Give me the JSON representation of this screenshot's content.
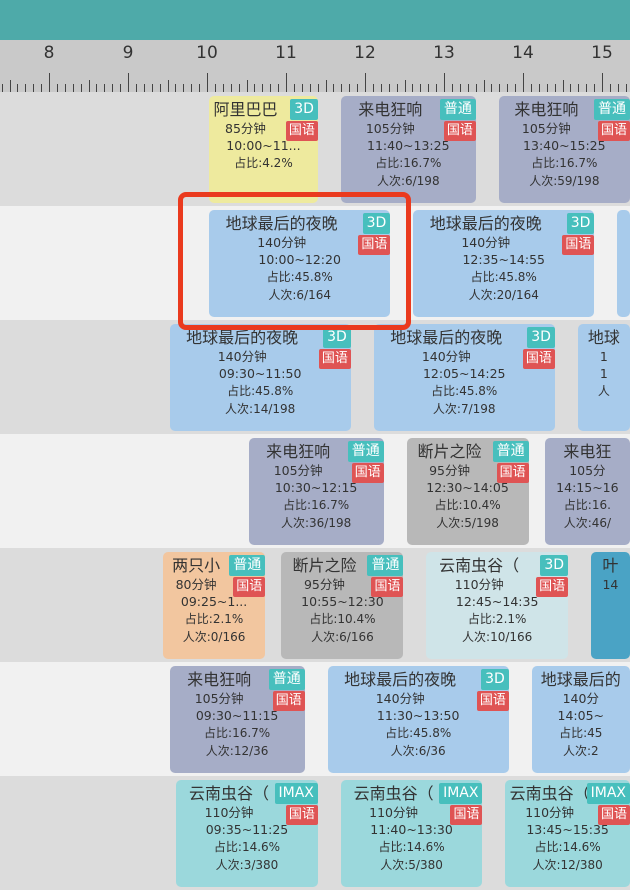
{
  "ruler": {
    "hours": [
      8,
      9,
      10,
      11,
      12,
      13,
      14,
      15
    ]
  },
  "colors": {
    "header": "#4eaaa9",
    "highlight": "#ea3a1e",
    "earth": "#a8cbeb",
    "phone": "#a6adc7",
    "drunk": "#b8b8b8",
    "kids": "#f2c69f",
    "ali": "#eeea9e",
    "yunnan3d": "#cfe4e8",
    "imax": "#9bd8dc",
    "ye": "#4aa3c5"
  },
  "rows": [
    {
      "cards": [
        {
          "title": "阿里巴巴",
          "fmt": "3D",
          "lang": "国语",
          "dur": "85分钟",
          "time": "10:00~11...",
          "ratio": "占比:4.2%",
          "att": "",
          "start": "10:00",
          "min": 85,
          "color": "ali"
        },
        {
          "title": "来电狂响",
          "fmt": "普通",
          "lang": "国语",
          "dur": "105分钟",
          "time": "11:40~13:25",
          "ratio": "占比:16.7%",
          "att": "人次:6/198",
          "start": "11:40",
          "min": 105,
          "color": "phone"
        },
        {
          "title": "来电狂响",
          "fmt": "普通",
          "lang": "国语",
          "dur": "105分钟",
          "time": "13:40~15:25",
          "ratio": "占比:16.7%",
          "att": "人次:59/198",
          "start": "13:40",
          "min": 105,
          "color": "phone"
        }
      ]
    },
    {
      "cards": [
        {
          "title": "地球最后的夜晚",
          "fmt": "3D",
          "lang": "国语",
          "dur": "140分钟",
          "time": "10:00~12:20",
          "ratio": "占比:45.8%",
          "att": "人次:6/164",
          "start": "10:00",
          "min": 140,
          "color": "earth"
        },
        {
          "title": "地球最后的夜晚",
          "fmt": "3D",
          "lang": "国语",
          "dur": "140分钟",
          "time": "12:35~14:55",
          "ratio": "占比:45.8%",
          "att": "人次:20/164",
          "start": "12:35",
          "min": 140,
          "color": "earth"
        },
        {
          "title": "",
          "fmt": "",
          "lang": "",
          "dur": "",
          "time": "",
          "ratio": "",
          "att": "",
          "start": "15:10",
          "min": 140,
          "color": "earth"
        }
      ]
    },
    {
      "cards": [
        {
          "title": "地球最后的夜晚",
          "fmt": "3D",
          "lang": "国语",
          "dur": "140分钟",
          "time": "09:30~11:50",
          "ratio": "占比:45.8%",
          "att": "人次:14/198",
          "start": "09:30",
          "min": 140,
          "color": "earth"
        },
        {
          "title": "地球最后的夜晚",
          "fmt": "3D",
          "lang": "国语",
          "dur": "140分钟",
          "time": "12:05~14:25",
          "ratio": "占比:45.8%",
          "att": "人次:7/198",
          "start": "12:05",
          "min": 140,
          "color": "earth"
        },
        {
          "title": "地球",
          "fmt": "",
          "lang": "",
          "dur": "1",
          "time": "1",
          "ratio": "",
          "att": "人",
          "start": "14:40",
          "min": 140,
          "color": "earth"
        }
      ]
    },
    {
      "cards": [
        {
          "title": "来电狂响",
          "fmt": "普通",
          "lang": "国语",
          "dur": "105分钟",
          "time": "10:30~12:15",
          "ratio": "占比:16.7%",
          "att": "人次:36/198",
          "start": "10:30",
          "min": 105,
          "color": "phone"
        },
        {
          "title": "断片之险",
          "fmt": "普通",
          "lang": "国语",
          "dur": "95分钟",
          "time": "12:30~14:05",
          "ratio": "占比:10.4%",
          "att": "人次:5/198",
          "start": "12:30",
          "min": 95,
          "color": "drunk"
        },
        {
          "title": "来电狂",
          "fmt": "",
          "lang": "",
          "dur": "105分",
          "time": "14:15~16",
          "ratio": "占比:16.",
          "att": "人次:46/",
          "start": "14:15",
          "min": 105,
          "color": "phone"
        }
      ]
    },
    {
      "cards": [
        {
          "title": "两只小",
          "fmt": "普通",
          "lang": "国语",
          "dur": "80分钟",
          "time": "09:25~1...",
          "ratio": "占比:2.1%",
          "att": "人次:0/166",
          "start": "09:25",
          "min": 80,
          "color": "kids"
        },
        {
          "title": "断片之险",
          "fmt": "普通",
          "lang": "国语",
          "dur": "95分钟",
          "time": "10:55~12:30",
          "ratio": "占比:10.4%",
          "att": "人次:6/166",
          "start": "10:55",
          "min": 95,
          "color": "drunk"
        },
        {
          "title": "云南虫谷（",
          "fmt": "3D",
          "lang": "国语",
          "dur": "110分钟",
          "time": "12:45~14:35",
          "ratio": "占比:2.1%",
          "att": "人次:10/166",
          "start": "12:45",
          "min": 110,
          "color": "yunnan3d"
        },
        {
          "title": "叶",
          "fmt": "",
          "lang": "",
          "dur": "",
          "time": "14",
          "ratio": "",
          "att": "",
          "start": "14:50",
          "min": 100,
          "color": "ye"
        }
      ]
    },
    {
      "cards": [
        {
          "title": "来电狂响",
          "fmt": "普通",
          "lang": "国语",
          "dur": "105分钟",
          "time": "09:30~11:15",
          "ratio": "占比:16.7%",
          "att": "人次:12/36",
          "start": "09:30",
          "min": 105,
          "color": "phone"
        },
        {
          "title": "地球最后的夜晚",
          "fmt": "3D",
          "lang": "国语",
          "dur": "140分钟",
          "time": "11:30~13:50",
          "ratio": "占比:45.8%",
          "att": "人次:6/36",
          "start": "11:30",
          "min": 140,
          "color": "earth"
        },
        {
          "title": "地球最后的",
          "fmt": "",
          "lang": "",
          "dur": "140分",
          "time": "14:05~",
          "ratio": "占比:45",
          "att": "人次:2",
          "start": "14:05",
          "min": 140,
          "color": "earth"
        }
      ]
    },
    {
      "cards": [
        {
          "title": "云南虫谷（",
          "fmt": "IMAX",
          "lang": "国语",
          "dur": "110分钟",
          "time": "09:35~11:25",
          "ratio": "占比:14.6%",
          "att": "人次:3/380",
          "start": "09:35",
          "min": 110,
          "color": "imax"
        },
        {
          "title": "云南虫谷（",
          "fmt": "IMAX",
          "lang": "国语",
          "dur": "110分钟",
          "time": "11:40~13:30",
          "ratio": "占比:14.6%",
          "att": "人次:5/380",
          "start": "11:40",
          "min": 110,
          "color": "imax"
        },
        {
          "title": "云南虫谷（",
          "fmt": "IMAX",
          "lang": "国语",
          "dur": "110分钟",
          "time": "13:45~15:35",
          "ratio": "占比:14.6%",
          "att": "人次:12/380",
          "start": "13:45",
          "min": 110,
          "color": "imax"
        }
      ]
    }
  ]
}
